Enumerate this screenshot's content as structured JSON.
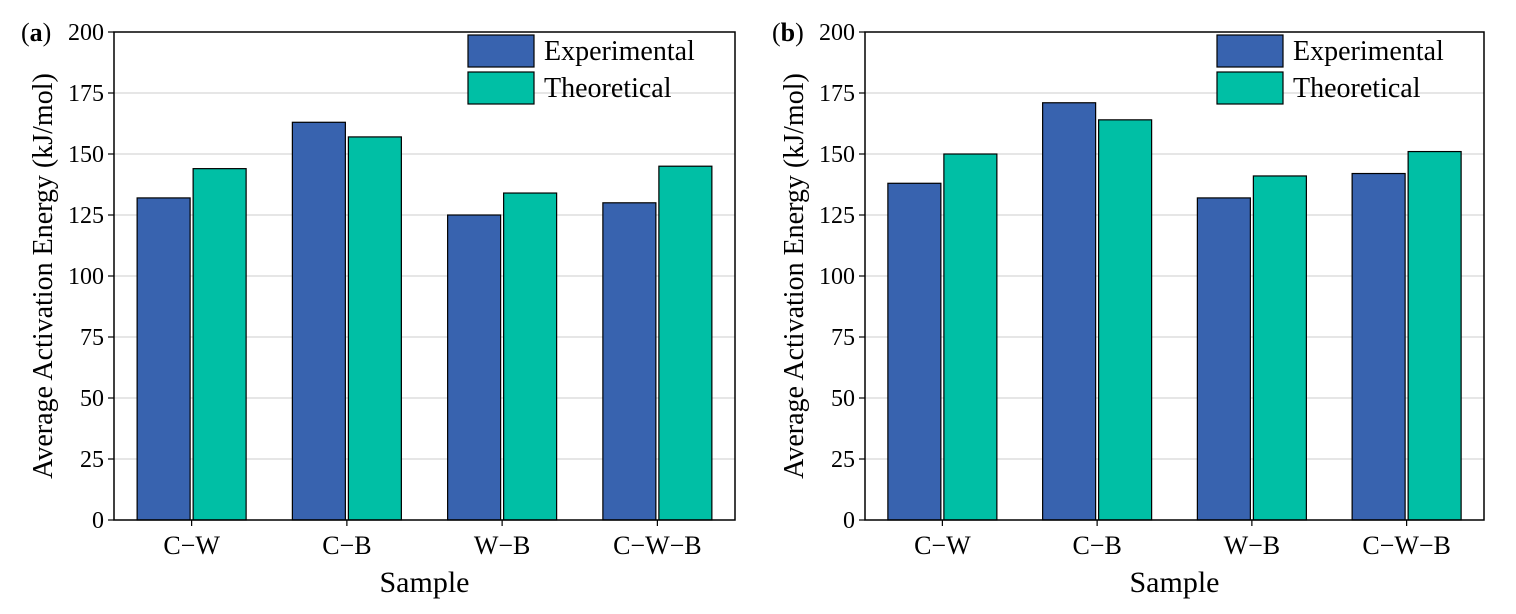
{
  "chart_data": [
    {
      "type": "bar",
      "panel_label": "a",
      "categories": [
        "C−W",
        "C−B",
        "W−B",
        "C−W−B"
      ],
      "series": [
        {
          "name": "Experimental",
          "values": [
            132,
            163,
            125,
            130
          ],
          "color": "#3863AF"
        },
        {
          "name": "Theoretical",
          "values": [
            144,
            157,
            134,
            145
          ],
          "color": "#00BFA5"
        }
      ],
      "xlabel": "Sample",
      "ylabel": "Average Activation Energy (kJ/mol)",
      "ylim": [
        0,
        200
      ],
      "yticks": [
        0,
        25,
        50,
        75,
        100,
        125,
        150,
        175,
        200
      ],
      "grid": true,
      "legend_position": "top-right"
    },
    {
      "type": "bar",
      "panel_label": "b",
      "categories": [
        "C−W",
        "C−B",
        "W−B",
        "C−W−B"
      ],
      "series": [
        {
          "name": "Experimental",
          "values": [
            138,
            171,
            132,
            142
          ],
          "color": "#3863AF"
        },
        {
          "name": "Theoretical",
          "values": [
            150,
            164,
            141,
            151
          ],
          "color": "#00BFA5"
        }
      ],
      "xlabel": "Sample",
      "ylabel": "Average Activation Energy (kJ/mol)",
      "ylim": [
        0,
        200
      ],
      "yticks": [
        0,
        25,
        50,
        75,
        100,
        125,
        150,
        175,
        200
      ],
      "grid": true,
      "legend_position": "top-right"
    }
  ]
}
